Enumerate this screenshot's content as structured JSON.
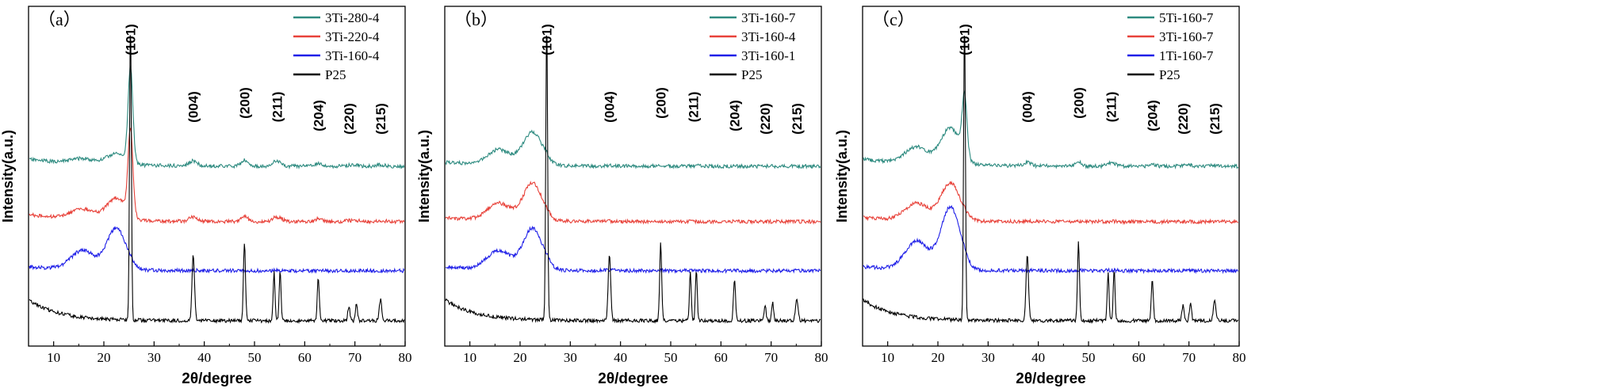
{
  "chart_data": [
    {
      "type": "line",
      "panel_label": "（a）",
      "xlabel": "2θ/degree",
      "ylabel": "Intensity(a.u.)",
      "xlim": [
        5,
        80
      ],
      "xticks": [
        10,
        20,
        30,
        40,
        50,
        60,
        70,
        80
      ],
      "peak_labels": [
        {
          "text": "(101)",
          "x": 25.3
        },
        {
          "text": "(004)",
          "x": 37.8
        },
        {
          "text": "(200)",
          "x": 48.0
        },
        {
          "text": "(211)",
          "x": 54.5
        },
        {
          "text": "(204)",
          "x": 62.7
        },
        {
          "text": "(220)",
          "x": 68.8
        },
        {
          "text": "(215)",
          "x": 75.1
        }
      ],
      "series": [
        {
          "name": "3Ti-280-4",
          "color": "#2e8b80",
          "offset": 3,
          "profile": "crystalline",
          "crystallinity": 0.55,
          "amorphous": 0.15
        },
        {
          "name": "3Ti-220-4",
          "color": "#e8423a",
          "offset": 2,
          "profile": "crystalline",
          "crystallinity": 0.5,
          "amorphous": 0.3
        },
        {
          "name": "3Ti-160-4",
          "color": "#1f1fe8",
          "offset": 1,
          "profile": "amorphous",
          "crystallinity": 0.05,
          "amorphous": 1.0
        },
        {
          "name": "P25",
          "color": "#000000",
          "offset": 0,
          "profile": "p25",
          "crystallinity": 1.0,
          "amorphous": 0
        }
      ]
    },
    {
      "type": "line",
      "panel_label": "（b）",
      "xlabel": "2θ/degree",
      "ylabel": "Intensity(a.u.)",
      "xlim": [
        5,
        80
      ],
      "xticks": [
        10,
        20,
        30,
        40,
        50,
        60,
        70,
        80
      ],
      "peak_labels": [
        {
          "text": "(101)",
          "x": 25.3
        },
        {
          "text": "(004)",
          "x": 37.8
        },
        {
          "text": "(200)",
          "x": 48.0
        },
        {
          "text": "(211)",
          "x": 54.5
        },
        {
          "text": "(204)",
          "x": 62.7
        },
        {
          "text": "(220)",
          "x": 68.8
        },
        {
          "text": "(215)",
          "x": 75.1
        }
      ],
      "series": [
        {
          "name": "3Ti-160-7",
          "color": "#2e8b80",
          "offset": 3,
          "profile": "amorphous",
          "crystallinity": 0.1,
          "amorphous": 0.8
        },
        {
          "name": "3Ti-160-4",
          "color": "#e8423a",
          "offset": 2,
          "profile": "amorphous",
          "crystallinity": 0.05,
          "amorphous": 0.9
        },
        {
          "name": "3Ti-160-1",
          "color": "#1f1fe8",
          "offset": 1,
          "profile": "amorphous",
          "crystallinity": 0.12,
          "amorphous": 1.0
        },
        {
          "name": "P25",
          "color": "#000000",
          "offset": 0,
          "profile": "p25",
          "crystallinity": 1.0,
          "amorphous": 0
        }
      ]
    },
    {
      "type": "line",
      "panel_label": "（c）",
      "xlabel": "2θ/degree",
      "ylabel": "Intensity(a.u.)",
      "xlim": [
        5,
        80
      ],
      "xticks": [
        10,
        20,
        30,
        40,
        50,
        60,
        70,
        80
      ],
      "peak_labels": [
        {
          "text": "(101)",
          "x": 25.3
        },
        {
          "text": "(004)",
          "x": 37.8
        },
        {
          "text": "(200)",
          "x": 48.0
        },
        {
          "text": "(211)",
          "x": 54.5
        },
        {
          "text": "(204)",
          "x": 62.7
        },
        {
          "text": "(220)",
          "x": 68.8
        },
        {
          "text": "(215)",
          "x": 75.1
        }
      ],
      "series": [
        {
          "name": "5Ti-160-7",
          "color": "#2e8b80",
          "offset": 3,
          "profile": "crystalline",
          "crystallinity": 0.35,
          "amorphous": 0.5
        },
        {
          "name": "3Ti-160-7",
          "color": "#e8423a",
          "offset": 2,
          "profile": "amorphous",
          "crystallinity": 0.05,
          "amorphous": 0.9
        },
        {
          "name": "1Ti-160-7",
          "color": "#1f1fe8",
          "offset": 1,
          "profile": "amorphous",
          "crystallinity": 0.1,
          "amorphous": 1.5
        },
        {
          "name": "P25",
          "color": "#000000",
          "offset": 0,
          "profile": "p25",
          "crystallinity": 1.0,
          "amorphous": 0
        }
      ]
    }
  ]
}
